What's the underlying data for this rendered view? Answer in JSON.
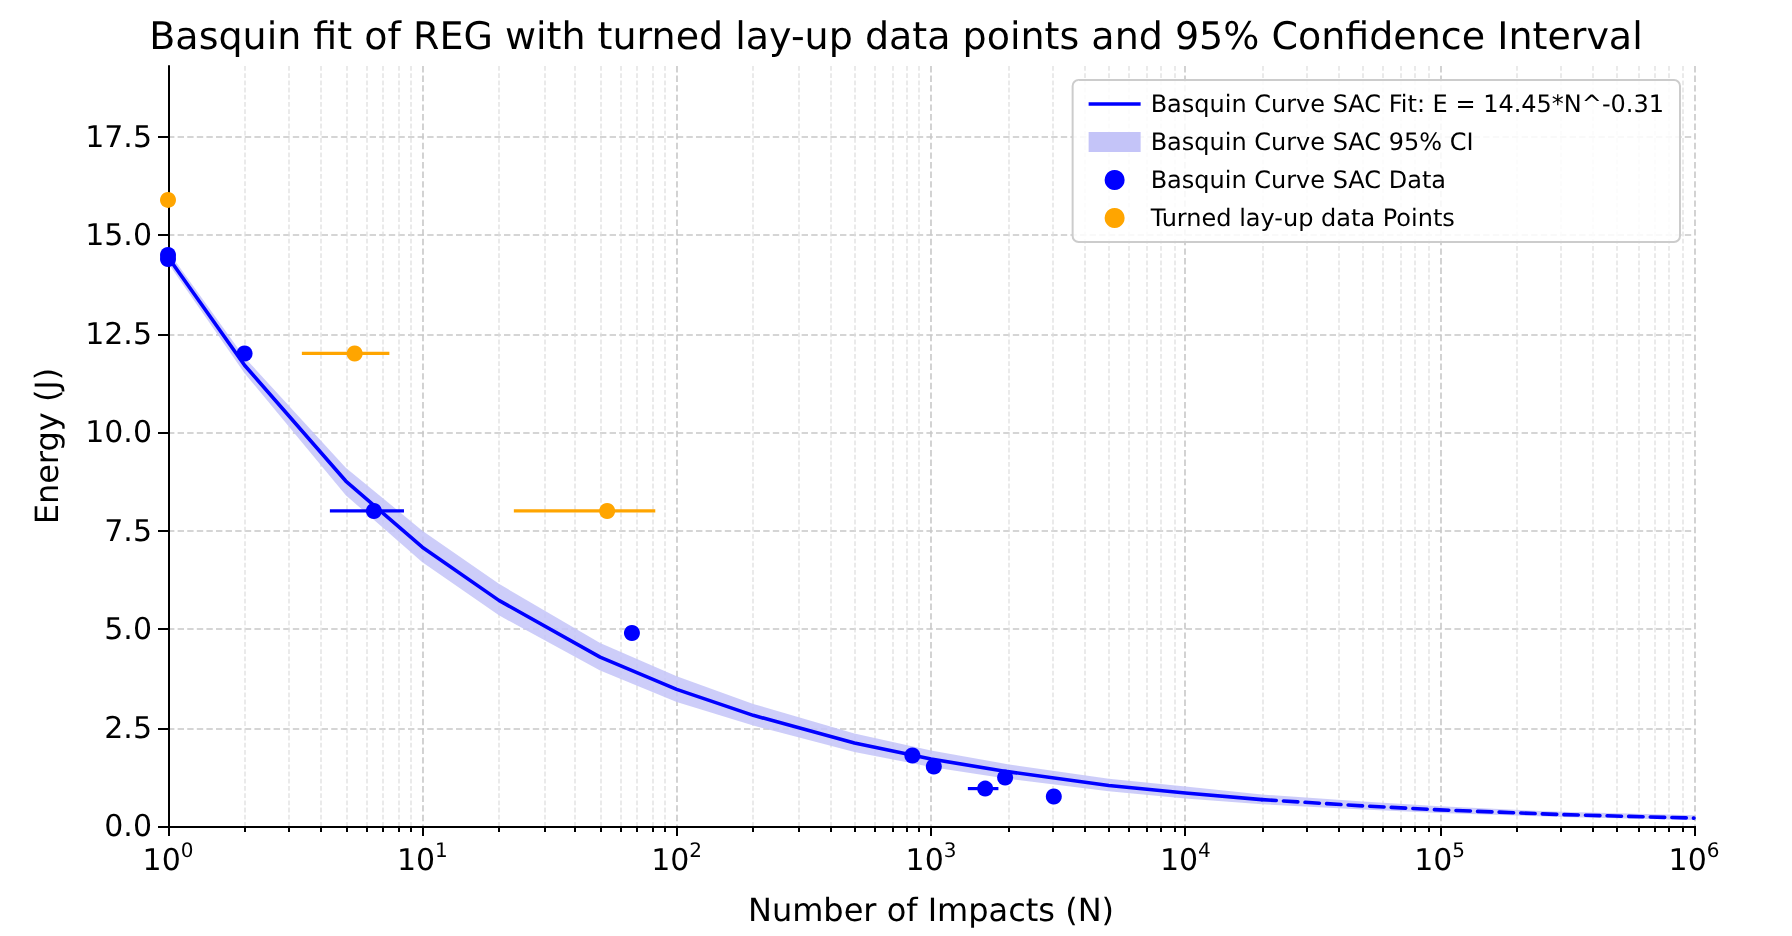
{
  "chart_data": {
    "type": "line",
    "title": "Basquin fit of REG with turned lay-up data points and 95% Confidence Interval",
    "xlabel": "Number of Impacts (N)",
    "ylabel": "Energy (J)",
    "log": "x",
    "grid": true,
    "legend": "top right",
    "xlim": [
      1,
      1000000
    ],
    "xticks": [
      {
        "value": 1,
        "label": "10$^{0}$"
      },
      {
        "value": 10,
        "label": "10$^{1}$"
      },
      {
        "value": 100,
        "label": "10$^{2}$"
      },
      {
        "value": 1000,
        "label": "10$^{3}$"
      },
      {
        "value": 10000,
        "label": "10$^{4}$"
      },
      {
        "value": 100000,
        "label": "10$^{5}$"
      },
      {
        "value": 1000000,
        "label": "10$^{6}$"
      }
    ],
    "ylim": [
      0,
      19.3
    ],
    "yticks": [
      {
        "value": 0,
        "label": "0.0"
      },
      2.5,
      {
        "value": 5,
        "label": "5.0"
      },
      7.5,
      {
        "value": 10,
        "label": "10.0"
      },
      12.5,
      {
        "value": 15,
        "label": "15.0"
      },
      17.5
    ],
    "series": [
      {
        "name": "Basquin Curve SAC Fit: E = 14.45*N^-0.31",
        "type": "line",
        "color": "#0000ff",
        "marker": "none",
        "line_style": "solid",
        "x": [
          1,
          2,
          5,
          10,
          20,
          50,
          100,
          200,
          500,
          1000,
          2000,
          5000,
          10000,
          20000
        ],
        "values": [
          14.45,
          11.7,
          8.76,
          7.08,
          5.73,
          4.29,
          3.47,
          2.81,
          2.11,
          1.7,
          1.38,
          1.03,
          0.84,
          0.67
        ],
        "lower": [
          14.3,
          11.5,
          8.4,
          6.7,
          5.35,
          3.95,
          3.15,
          2.55,
          1.88,
          1.5,
          1.2,
          0.88,
          0.7,
          0.55
        ],
        "upper": [
          14.6,
          11.9,
          9.1,
          7.5,
          6.15,
          4.65,
          3.8,
          3.1,
          2.35,
          1.92,
          1.57,
          1.2,
          1.0,
          0.8
        ]
      },
      {
        "type": "line",
        "color": "#0000ff",
        "marker": "none",
        "line_style": "dashed",
        "x": [
          20000,
          50000,
          100000,
          300000,
          1000000
        ],
        "values": [
          0.67,
          0.51,
          0.41,
          0.29,
          0.2
        ],
        "lower": [
          0.55,
          0.42,
          0.33,
          0.23,
          0.15
        ],
        "upper": [
          0.8,
          0.62,
          0.5,
          0.36,
          0.27
        ]
      },
      {
        "name": "Basquin Curve SAC 95% CI",
        "type": "area",
        "color": "#c4c4f8"
      },
      {
        "name": "Basquin Curve SAC Data",
        "type": "scatter",
        "color": "#0000ff",
        "marker": "circle",
        "x": [
          1,
          1,
          2,
          6.45,
          66.7,
          845,
          1026,
          1633,
          1956,
          3040
        ],
        "values": [
          14.5,
          14.4,
          12,
          8,
          4.9,
          1.79,
          1.51,
          0.95,
          1.23,
          0.75
        ],
        "xerrors": [
          null,
          null,
          null,
          [
            4.33,
            8.47
          ],
          null,
          null,
          null,
          [
            1396,
            1841
          ],
          null,
          null
        ]
      },
      {
        "name": "Turned lay-up data Points",
        "type": "scatter",
        "color": "#ffa500",
        "marker": "circle",
        "x": [
          1,
          5.42,
          53.3
        ],
        "values": [
          15.9,
          12,
          8
        ],
        "xerrors": [
          null,
          [
            3.36,
            7.42
          ],
          [
            22.9,
            82.4
          ]
        ]
      }
    ]
  }
}
